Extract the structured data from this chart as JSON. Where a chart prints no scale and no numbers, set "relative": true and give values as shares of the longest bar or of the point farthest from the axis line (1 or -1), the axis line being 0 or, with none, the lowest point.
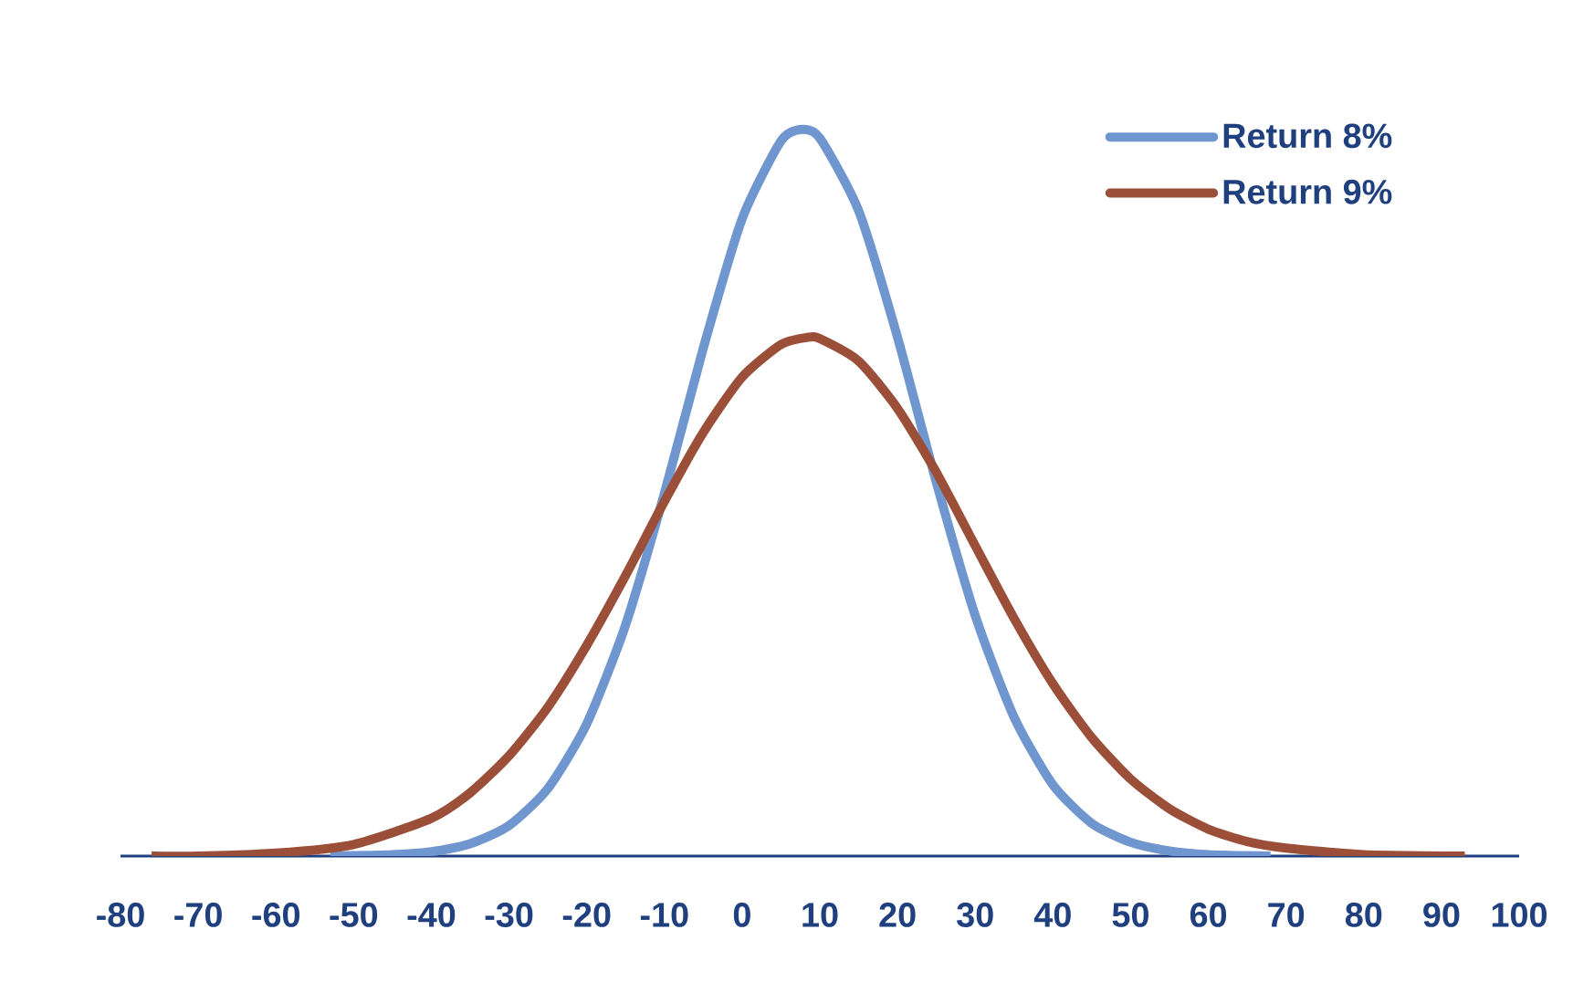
{
  "chart_data": {
    "type": "line",
    "relative": true,
    "xlim": [
      -80,
      100
    ],
    "xticks": [
      -80,
      -70,
      -60,
      -50,
      -40,
      -30,
      -20,
      -10,
      0,
      10,
      20,
      30,
      40,
      50,
      60,
      70,
      80,
      90,
      100
    ],
    "legend": "top right",
    "series": [
      {
        "name": "Return 8%",
        "color": "#7096cf",
        "x": [
          -53,
          -45,
          -40,
          -35,
          -30,
          -25,
          -20,
          -15,
          -10,
          -5,
          0,
          5,
          7.7,
          10,
          15,
          20,
          25,
          30,
          35,
          40,
          45,
          50,
          55,
          60,
          68
        ],
        "values": [
          0,
          0.002,
          0.006,
          0.017,
          0.042,
          0.093,
          0.182,
          0.318,
          0.499,
          0.699,
          0.877,
          0.984,
          1,
          0.988,
          0.888,
          0.714,
          0.514,
          0.331,
          0.191,
          0.098,
          0.045,
          0.019,
          0.007,
          0.002,
          0
        ]
      },
      {
        "name": "Return 9%",
        "color": "#9c4f38",
        "x": [
          -76,
          -70,
          -60,
          -50,
          -40,
          -35,
          -30,
          -25,
          -20,
          -15,
          -10,
          -5,
          0,
          5,
          8.5,
          10,
          15,
          20,
          25,
          30,
          35,
          40,
          45,
          50,
          55,
          60,
          65,
          70,
          80,
          93
        ],
        "values": [
          0,
          0,
          0.004,
          0.016,
          0.052,
          0.087,
          0.138,
          0.205,
          0.29,
          0.386,
          0.488,
          0.583,
          0.659,
          0.704,
          0.714,
          0.712,
          0.681,
          0.616,
          0.528,
          0.427,
          0.327,
          0.237,
          0.163,
          0.106,
          0.065,
          0.037,
          0.02,
          0.011,
          0.002,
          0
        ]
      }
    ]
  }
}
